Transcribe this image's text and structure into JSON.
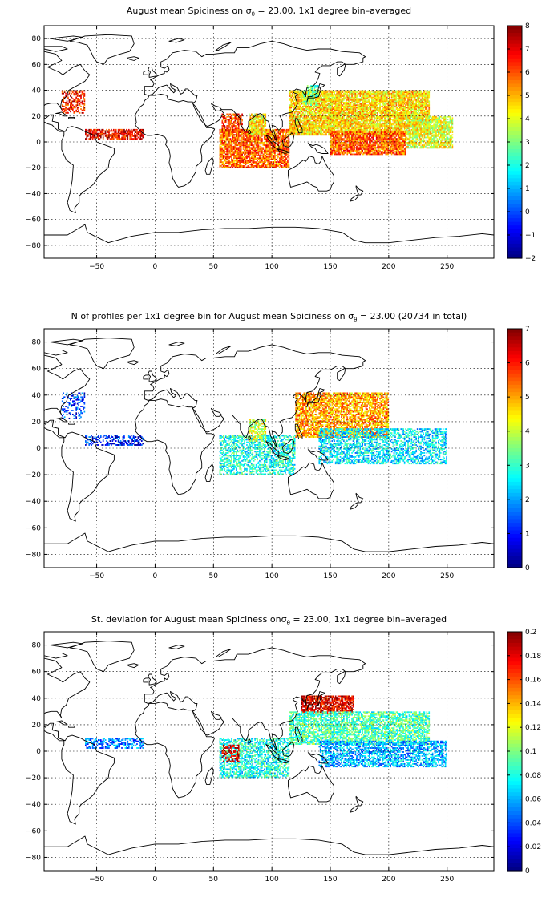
{
  "chart_data": [
    {
      "type": "heatmap",
      "title_parts": [
        "August mean Spiciness on ",
        "σ",
        "θ",
        " = 23.00, 1x1 degree bin–averaged"
      ],
      "x_ticks": [
        -50,
        0,
        50,
        100,
        150,
        200,
        250
      ],
      "y_ticks": [
        80,
        60,
        40,
        20,
        0,
        -20,
        -40,
        -60,
        -80
      ],
      "xlim": [
        -95,
        290
      ],
      "ylim": [
        -90,
        90
      ],
      "colorbar": {
        "min": -2,
        "max": 8,
        "ticks": [
          8,
          7,
          6,
          5,
          4,
          3,
          2,
          1,
          0,
          -1,
          -2
        ],
        "colormap": "jet"
      },
      "regions": [
        {
          "name": "North Pacific",
          "lon": [
            115,
            235
          ],
          "lat": [
            5,
            40
          ],
          "value": 4.6,
          "density": 0.85
        },
        {
          "name": "Equatorial Pacific",
          "lon": [
            150,
            215
          ],
          "lat": [
            -10,
            8
          ],
          "value": 5.8,
          "density": 0.85
        },
        {
          "name": "East Pacific",
          "lon": [
            215,
            255
          ],
          "lat": [
            -5,
            20
          ],
          "value": 4.0,
          "density": 0.75
        },
        {
          "name": "Indian Ocean",
          "lon": [
            55,
            115
          ],
          "lat": [
            -20,
            10
          ],
          "value": 5.8,
          "density": 0.8
        },
        {
          "name": "Bay of Bengal",
          "lon": [
            80,
            95
          ],
          "lat": [
            5,
            22
          ],
          "value": 4.5,
          "density": 0.8
        },
        {
          "name": "Arabian Sea",
          "lon": [
            57,
            75
          ],
          "lat": [
            5,
            22
          ],
          "value": 6.2,
          "density": 0.6
        },
        {
          "name": "Tropical Atlantic",
          "lon": [
            -60,
            -10
          ],
          "lat": [
            2,
            10
          ],
          "value": 6.8,
          "density": 0.7
        },
        {
          "name": "Gulf Stream",
          "lon": [
            -80,
            -60
          ],
          "lat": [
            22,
            40
          ],
          "value": 6.5,
          "density": 0.5
        },
        {
          "name": "Kuroshio",
          "lon": [
            125,
            140
          ],
          "lat": [
            28,
            40
          ],
          "value": 3.2,
          "density": 0.6
        },
        {
          "name": "Sea of Japan",
          "lon": [
            130,
            140
          ],
          "lat": [
            35,
            44
          ],
          "value": 2.8,
          "density": 0.7
        }
      ]
    },
    {
      "type": "heatmap",
      "title_parts": [
        "N of profiles per 1x1 degree bin for August mean Spiciness on ",
        "σ",
        "θ",
        " = 23.00 (20734 in total)"
      ],
      "x_ticks": [
        -50,
        0,
        50,
        100,
        150,
        200,
        250
      ],
      "y_ticks": [
        80,
        60,
        40,
        20,
        0,
        -20,
        -40,
        -60,
        -80
      ],
      "xlim": [
        -95,
        290
      ],
      "ylim": [
        -90,
        90
      ],
      "colorbar": {
        "min": 0,
        "max": 7,
        "ticks": [
          7,
          6,
          5,
          4,
          3,
          2,
          1,
          0
        ],
        "colormap": "jet"
      },
      "regions": [
        {
          "name": "North Pacific",
          "lon": [
            120,
            200
          ],
          "lat": [
            8,
            42
          ],
          "value": 5.0,
          "density": 0.75
        },
        {
          "name": "Tropical Pacific",
          "lon": [
            140,
            250
          ],
          "lat": [
            -12,
            15
          ],
          "value": 2.5,
          "density": 0.55
        },
        {
          "name": "Indian Ocean",
          "lon": [
            55,
            120
          ],
          "lat": [
            -20,
            10
          ],
          "value": 2.8,
          "density": 0.55
        },
        {
          "name": "Bay of Bengal",
          "lon": [
            80,
            95
          ],
          "lat": [
            5,
            22
          ],
          "value": 4.0,
          "density": 0.6
        },
        {
          "name": "Tropical Atlantic",
          "lon": [
            -60,
            -10
          ],
          "lat": [
            2,
            10
          ],
          "value": 1.0,
          "density": 0.5
        },
        {
          "name": "Gulf Stream",
          "lon": [
            -80,
            -60
          ],
          "lat": [
            22,
            42
          ],
          "value": 1.2,
          "density": 0.35
        }
      ]
    },
    {
      "type": "heatmap",
      "title_parts": [
        "St. deviation for August mean Spiciness on",
        "σ",
        "θ",
        " = 23.00, 1x1 degree bin–averaged"
      ],
      "x_ticks": [
        -50,
        0,
        50,
        100,
        150,
        200,
        250
      ],
      "y_ticks": [
        80,
        60,
        40,
        20,
        0,
        -20,
        -40,
        -60,
        -80
      ],
      "xlim": [
        -95,
        290
      ],
      "ylim": [
        -90,
        90
      ],
      "colorbar": {
        "min": 0,
        "max": 0.2,
        "ticks": [
          0.2,
          0.18,
          0.16,
          0.14,
          0.12,
          0.1,
          0.08,
          0.06,
          0.04,
          0.02,
          0
        ],
        "colormap": "jet"
      },
      "regions": [
        {
          "name": "Kuroshio",
          "lon": [
            125,
            170
          ],
          "lat": [
            28,
            42
          ],
          "value": 0.18,
          "density": 0.8
        },
        {
          "name": "North Pacific",
          "lon": [
            115,
            235
          ],
          "lat": [
            5,
            30
          ],
          "value": 0.09,
          "density": 0.7
        },
        {
          "name": "Tropical Pacific",
          "lon": [
            140,
            250
          ],
          "lat": [
            -12,
            8
          ],
          "value": 0.06,
          "density": 0.6
        },
        {
          "name": "Indian Ocean",
          "lon": [
            55,
            115
          ],
          "lat": [
            -20,
            10
          ],
          "value": 0.08,
          "density": 0.6
        },
        {
          "name": "Arabian Sea",
          "lon": [
            57,
            72
          ],
          "lat": [
            -8,
            5
          ],
          "value": 0.18,
          "density": 0.5
        },
        {
          "name": "Tropical Atlantic",
          "lon": [
            -60,
            -10
          ],
          "lat": [
            2,
            10
          ],
          "value": 0.05,
          "density": 0.5
        }
      ]
    }
  ]
}
